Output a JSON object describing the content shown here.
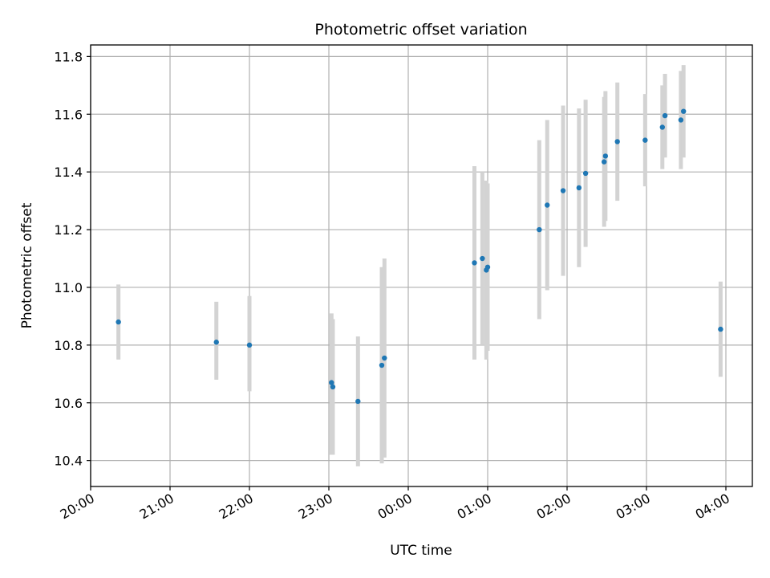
{
  "chart_data": {
    "type": "scatter",
    "title": "Photometric offset variation",
    "xlabel": "UTC time",
    "ylabel": "Photometric offset",
    "xlim": [
      "20:00",
      "04:20"
    ],
    "ylim": [
      10.31,
      11.84
    ],
    "x_ticks": [
      "20:00",
      "21:00",
      "22:00",
      "23:00",
      "00:00",
      "01:00",
      "02:00",
      "03:00",
      "04:00"
    ],
    "y_ticks": [
      10.4,
      10.6,
      10.8,
      11.0,
      11.2,
      11.4,
      11.6,
      11.8
    ],
    "grid": true,
    "marker_color": "#1f77b4",
    "errorbar_color": "#d3d3d3",
    "points": [
      {
        "t": "20:21",
        "y": 10.88,
        "lo": 10.75,
        "hi": 11.01
      },
      {
        "t": "21:35",
        "y": 10.81,
        "lo": 10.68,
        "hi": 10.95
      },
      {
        "t": "22:00",
        "y": 10.8,
        "lo": 10.64,
        "hi": 10.97
      },
      {
        "t": "23:02",
        "y": 10.67,
        "lo": 10.42,
        "hi": 10.91
      },
      {
        "t": "23:03",
        "y": 10.655,
        "lo": 10.42,
        "hi": 10.89
      },
      {
        "t": "23:22",
        "y": 10.605,
        "lo": 10.38,
        "hi": 10.83
      },
      {
        "t": "23:40",
        "y": 10.73,
        "lo": 10.39,
        "hi": 11.07
      },
      {
        "t": "23:42",
        "y": 10.755,
        "lo": 10.41,
        "hi": 11.1
      },
      {
        "t": "00:50",
        "y": 11.085,
        "lo": 10.75,
        "hi": 11.42
      },
      {
        "t": "00:56",
        "y": 11.1,
        "lo": 10.8,
        "hi": 11.4
      },
      {
        "t": "00:59",
        "y": 11.06,
        "lo": 10.75,
        "hi": 11.37
      },
      {
        "t": "01:00",
        "y": 11.07,
        "lo": 10.78,
        "hi": 11.36
      },
      {
        "t": "01:39",
        "y": 11.2,
        "lo": 10.89,
        "hi": 11.51
      },
      {
        "t": "01:45",
        "y": 11.285,
        "lo": 10.99,
        "hi": 11.58
      },
      {
        "t": "01:57",
        "y": 11.335,
        "lo": 11.04,
        "hi": 11.63
      },
      {
        "t": "02:09",
        "y": 11.345,
        "lo": 11.07,
        "hi": 11.62
      },
      {
        "t": "02:14",
        "y": 11.395,
        "lo": 11.14,
        "hi": 11.65
      },
      {
        "t": "02:28",
        "y": 11.435,
        "lo": 11.21,
        "hi": 11.66
      },
      {
        "t": "02:29",
        "y": 11.455,
        "lo": 11.23,
        "hi": 11.68
      },
      {
        "t": "02:38",
        "y": 11.505,
        "lo": 11.3,
        "hi": 11.71
      },
      {
        "t": "02:59",
        "y": 11.51,
        "lo": 11.35,
        "hi": 11.67
      },
      {
        "t": "03:12",
        "y": 11.555,
        "lo": 11.41,
        "hi": 11.7
      },
      {
        "t": "03:14",
        "y": 11.595,
        "lo": 11.45,
        "hi": 11.74
      },
      {
        "t": "03:26",
        "y": 11.58,
        "lo": 11.41,
        "hi": 11.75
      },
      {
        "t": "03:28",
        "y": 11.61,
        "lo": 11.45,
        "hi": 11.77
      },
      {
        "t": "03:56",
        "y": 10.855,
        "lo": 10.69,
        "hi": 11.02
      }
    ]
  }
}
